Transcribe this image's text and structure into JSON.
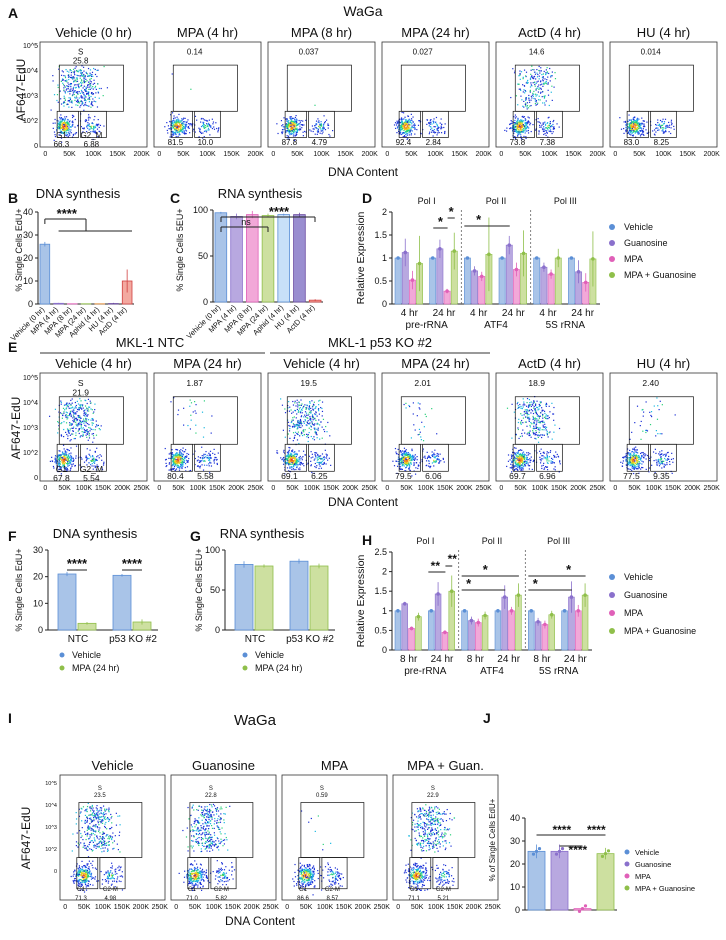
{
  "A": {
    "label": "A",
    "title": "WaGa",
    "ylabel": "AF647-EdU",
    "xlabel": "DNA Content",
    "xticks": [
      "0",
      "50K",
      "100K",
      "150K",
      "200K"
    ],
    "yticks": [
      "10^5",
      "10^4",
      "10^3",
      "10^2",
      "0"
    ],
    "panels": [
      {
        "name": "Vehicle (0 hr)",
        "s": "25.8",
        "g1": "66.3",
        "g2m": "6.88",
        "s_label": "S",
        "g1_label": "G1",
        "g2m_label": "G2_M"
      },
      {
        "name": "MPA (4 hr)",
        "s": "0.14",
        "g1": "81.5",
        "g2m": "10.0"
      },
      {
        "name": "MPA (8 hr)",
        "s": "0.037",
        "g1": "87.8",
        "g2m": "4.79"
      },
      {
        "name": "MPA (24 hr)",
        "s": "0.027",
        "g1": "92.4",
        "g2m": "2.84"
      },
      {
        "name": "ActD (4 hr)",
        "s": "14.6",
        "g1": "73.8",
        "g2m": "7.38"
      },
      {
        "name": "HU (4 hr)",
        "s": "0.014",
        "g1": "83.0",
        "g2m": "8.25"
      }
    ]
  },
  "B": {
    "label": "B",
    "title": "DNA synthesis",
    "ylabel": "% Single Cells EdU+",
    "sig": "****",
    "chart_data": {
      "type": "bar",
      "categories": [
        "Vehicle (0 hr)",
        "MPA (4 hr)",
        "MPA (8 hr)",
        "MPA (24 hr)",
        "Aphid (4 hr)",
        "HU (4 hr)",
        "ActD (4 hr)"
      ],
      "values": [
        26,
        0.3,
        0.1,
        0.1,
        0.1,
        0.2,
        10
      ],
      "errors": [
        1,
        0.2,
        0.1,
        0.1,
        0.1,
        0.3,
        5
      ],
      "ylim": [
        0,
        40
      ],
      "yticks": [
        0,
        10,
        20,
        30,
        40
      ]
    }
  },
  "C": {
    "label": "C",
    "title": "RNA synthesis",
    "ylabel": "% Single Cells 5EU+",
    "sig": "****",
    "ns": "ns",
    "chart_data": {
      "type": "bar",
      "categories": [
        "Vehicle (0 hr)",
        "MPA (4 hr)",
        "MPA (8 hr)",
        "MPA (24 hr)",
        "Aphid (4 hr)",
        "HU (4 hr)",
        "ActD (4 hr)"
      ],
      "values": [
        97,
        93,
        95,
        94,
        95,
        95,
        2
      ],
      "errors": [
        1,
        3,
        4,
        2,
        1,
        2,
        1
      ],
      "ylim": [
        0,
        100
      ],
      "yticks": [
        0,
        50,
        100
      ]
    }
  },
  "D": {
    "label": "D",
    "ylabel": "Relative Expression",
    "groups": [
      "Pol I",
      "Pol II",
      "Pol III"
    ],
    "legend": [
      "Vehicle",
      "Guanosine",
      "MPA",
      "MPA + Guanosine"
    ],
    "colors": [
      "#a9c4e8",
      "#b8a8e0",
      "#f2a8d8",
      "#cde0a0"
    ],
    "dot_colors": [
      "#5b8fd6",
      "#8a70cc",
      "#e060b8",
      "#8fbf4a"
    ],
    "chart_data": {
      "type": "bar",
      "ylim": [
        0,
        2.0
      ],
      "yticks": [
        0.0,
        0.5,
        1.0,
        1.5,
        2.0
      ],
      "categories": [
        "4 hr",
        "24 hr",
        "4 hr",
        "24 hr",
        "4 hr",
        "24 hr"
      ],
      "category_groups": [
        "pre-rRNA",
        "ATF4",
        "5S rRNA"
      ],
      "series": [
        {
          "name": "Vehicle",
          "values": [
            1.0,
            1.0,
            1.0,
            1.0,
            1.0,
            1.0
          ],
          "errors": [
            0.02,
            0.02,
            0.02,
            0.02,
            0.02,
            0.02
          ]
        },
        {
          "name": "Guanosine",
          "values": [
            1.12,
            1.2,
            0.72,
            1.28,
            0.8,
            0.7
          ],
          "errors": [
            0.3,
            0.2,
            0.1,
            0.2,
            0.1,
            0.25
          ]
        },
        {
          "name": "MPA",
          "values": [
            0.52,
            0.28,
            0.6,
            0.75,
            0.65,
            0.47
          ],
          "errors": [
            0.2,
            0.05,
            0.1,
            0.15,
            0.1,
            0.2
          ]
        },
        {
          "name": "MPA + Guanosine",
          "values": [
            0.88,
            1.15,
            1.08,
            1.1,
            1.0,
            0.98
          ],
          "errors": [
            0.6,
            0.4,
            0.8,
            0.5,
            0.2,
            0.6
          ]
        }
      ],
      "sig": "*"
    }
  },
  "E": {
    "label": "E",
    "group1": "MKL-1 NTC",
    "group2": "MKL-1 p53 KO #2",
    "ylabel": "AF647-EdU",
    "xlabel": "DNA Content",
    "xticks": [
      "0",
      "50K",
      "100K",
      "150K",
      "200K",
      "250K"
    ],
    "yticks": [
      "10^5",
      "10^4",
      "10^3",
      "10^2",
      "0"
    ],
    "panels": [
      {
        "name": "Vehicle (4 hr)",
        "s": "21.9",
        "g1": "67.8",
        "g2m": "5.54",
        "s_label": "S",
        "g1_label": "G1",
        "g2m_label": "G2_M"
      },
      {
        "name": "MPA (24 hr)",
        "s": "1.87",
        "g1": "80.4",
        "g2m": "5.58"
      },
      {
        "name": "Vehicle (4 hr)",
        "s": "19.5",
        "g1": "69.1",
        "g2m": "6.25"
      },
      {
        "name": "MPA (24 hr)",
        "s": "2.01",
        "g1": "79.5",
        "g2m": "6.06"
      },
      {
        "name": "ActD (4 hr)",
        "s": "18.9",
        "g1": "69.7",
        "g2m": "6.96"
      },
      {
        "name": "HU (4 hr)",
        "s": "2.40",
        "g1": "77.5",
        "g2m": "9.35"
      }
    ]
  },
  "F": {
    "label": "F",
    "title": "DNA synthesis",
    "ylabel": "% Single Cells EdU+",
    "legend": [
      "Vehicle",
      "MPA (24 hr)"
    ],
    "sig": "****",
    "chart_data": {
      "type": "bar",
      "categories": [
        "NTC",
        "p53 KO #2"
      ],
      "series": [
        {
          "name": "Vehicle",
          "values": [
            21,
            20.5
          ],
          "errors": [
            0.8,
            0.5
          ]
        },
        {
          "name": "MPA (24 hr)",
          "values": [
            2.5,
            3
          ],
          "errors": [
            0.5,
            1
          ]
        }
      ],
      "ylim": [
        0,
        30
      ],
      "yticks": [
        0,
        10,
        20,
        30
      ]
    }
  },
  "G": {
    "label": "G",
    "title": "RNA synthesis",
    "ylabel": "% Single Cells 5EU+",
    "legend": [
      "Vehicle",
      "MPA (24 hr)"
    ],
    "chart_data": {
      "type": "bar",
      "categories": [
        "NTC",
        "p53 KO #2"
      ],
      "series": [
        {
          "name": "Vehicle",
          "values": [
            82,
            86
          ],
          "errors": [
            4,
            3
          ]
        },
        {
          "name": "MPA (24 hr)",
          "values": [
            80,
            80
          ],
          "errors": [
            2,
            3
          ]
        }
      ],
      "ylim": [
        0,
        100
      ],
      "yticks": [
        0,
        50,
        100
      ]
    }
  },
  "H": {
    "label": "H",
    "ylabel": "Relative Expression",
    "groups": [
      "Pol I",
      "Pol II",
      "Pol III"
    ],
    "legend": [
      "Vehicle",
      "Guanosine",
      "MPA",
      "MPA + Guanosine"
    ],
    "chart_data": {
      "type": "bar",
      "ylim": [
        0,
        2.5
      ],
      "yticks": [
        0.0,
        0.5,
        1.0,
        1.5,
        2.0,
        2.5
      ],
      "categories": [
        "8 hr",
        "24 hr",
        "8 hr",
        "24 hr",
        "8 hr",
        "24 hr"
      ],
      "category_groups": [
        "pre-rRNA",
        "ATF4",
        "5S rRNA"
      ],
      "series": [
        {
          "name": "Vehicle",
          "values": [
            1.0,
            1.0,
            1.0,
            1.0,
            1.0,
            1.0
          ],
          "errors": [
            0.02,
            0.02,
            0.02,
            0.02,
            0.02,
            0.02
          ]
        },
        {
          "name": "Guanosine",
          "values": [
            1.18,
            1.43,
            0.75,
            1.35,
            0.72,
            1.35
          ],
          "errors": [
            0.05,
            0.3,
            0.1,
            0.3,
            0.1,
            0.4
          ]
        },
        {
          "name": "MPA",
          "values": [
            0.55,
            0.45,
            0.7,
            1.0,
            0.65,
            1.0
          ],
          "errors": [
            0.05,
            0.05,
            0.1,
            0.1,
            0.1,
            0.15
          ]
        },
        {
          "name": "MPA + Guanosine",
          "values": [
            0.85,
            1.5,
            0.88,
            1.4,
            0.9,
            1.4
          ],
          "errors": [
            0.1,
            0.4,
            0.1,
            0.3,
            0.1,
            0.3
          ]
        }
      ],
      "sig": "*",
      "sig2": "**"
    }
  },
  "I": {
    "label": "I",
    "title": "WaGa",
    "ylabel": "AF647-EdU",
    "xlabel": "DNA Content",
    "xticks": [
      "0",
      "50K",
      "100K",
      "150K",
      "200K",
      "250K"
    ],
    "yticks": [
      "10^5",
      "10^4",
      "10^3",
      "10^2",
      "0"
    ],
    "panels": [
      {
        "name": "Vehicle",
        "s": "23.5",
        "g1": "71.3",
        "g2m": "4.98",
        "s_label": "S",
        "g1_label": "G1",
        "g2m_label": "G2-M"
      },
      {
        "name": "Guanosine",
        "s": "22.8",
        "g1": "71.0",
        "g2m": "5.82",
        "s_label": "S",
        "g1_label": "G1",
        "g2m_label": "G2-M"
      },
      {
        "name": "MPA",
        "s": "0.59",
        "g1": "86.6",
        "g2m": "8.57",
        "s_label": "S",
        "g1_label": "G1",
        "g2m_label": "G2-M"
      },
      {
        "name": "MPA + Guan.",
        "s": "22.9",
        "g1": "71.1",
        "g2m": "5.21",
        "s_label": "S",
        "g1_label": "G1",
        "g2m_label": "G2-M"
      }
    ]
  },
  "J": {
    "label": "J",
    "ylabel": "% of Single Cells EdU+",
    "legend": [
      "Vehicle",
      "Guanosine",
      "MPA",
      "MPA + Guanosine"
    ],
    "sig": "****",
    "chart_data": {
      "type": "bar",
      "categories": [
        "Vehicle",
        "Guanosine",
        "MPA",
        "MPA + Guanosine"
      ],
      "values": [
        25.5,
        25.5,
        0.6,
        24.5
      ],
      "errors": [
        3,
        3,
        0.2,
        2.5
      ],
      "ylim": [
        0,
        40
      ],
      "yticks": [
        0,
        10,
        20,
        30,
        40
      ]
    }
  }
}
